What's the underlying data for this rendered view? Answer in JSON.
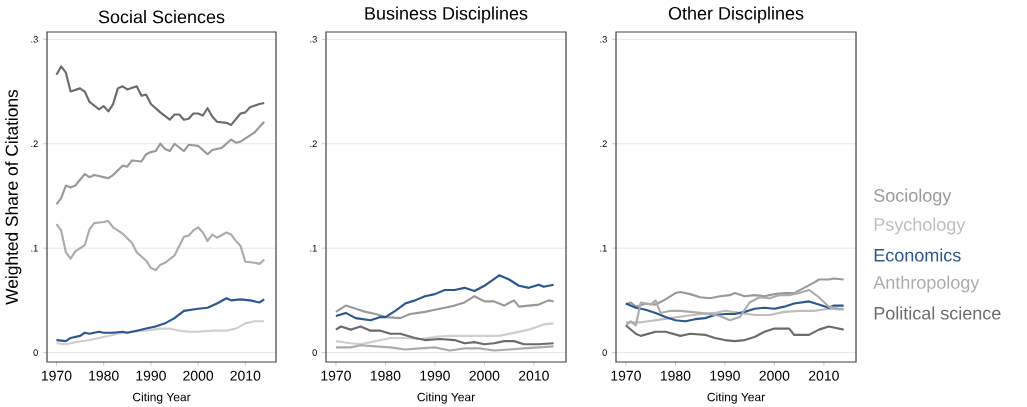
{
  "chart_data": [
    {
      "type": "line",
      "title": "Social Sciences",
      "xlabel": "Citing Year",
      "ylabel": "Weighted Share of Citations",
      "xlim": [
        1968,
        2016.5
      ],
      "ylim": [
        -0.009,
        0.307
      ],
      "xticks": [
        1970,
        1980,
        1990,
        2000,
        2010
      ],
      "yticks": [
        0,
        {
          "value": 0.1,
          "label": ".1"
        },
        {
          "value": 0.2,
          "label": ".2"
        },
        {
          "value": 0.3,
          "label": ".3"
        }
      ],
      "grid": "y",
      "series": [
        {
          "color": "#999999",
          "x": [
            1970,
            1971,
            1972,
            1973,
            1974,
            1976,
            1977,
            1978,
            1980,
            1981,
            1982,
            1984,
            1985,
            1986,
            1988,
            1989,
            1990,
            1991,
            1992,
            1993,
            1994,
            1995,
            1997,
            1998,
            2000,
            2002,
            2003,
            2005,
            2007,
            2008,
            2009,
            2011,
            2012,
            2014
          ],
          "values": [
            0.142,
            0.148,
            0.16,
            0.158,
            0.16,
            0.171,
            0.168,
            0.17,
            0.168,
            0.167,
            0.17,
            0.179,
            0.178,
            0.184,
            0.183,
            0.19,
            0.192,
            0.193,
            0.2,
            0.195,
            0.193,
            0.2,
            0.193,
            0.199,
            0.198,
            0.19,
            0.194,
            0.196,
            0.204,
            0.201,
            0.202,
            0.208,
            0.211,
            0.221
          ]
        },
        {
          "color": "#cfcfcf",
          "x": [
            1970,
            1972,
            1974,
            1977,
            1980,
            1983,
            1986,
            1989,
            1992,
            1994,
            1996,
            1998,
            2000,
            2003,
            2006,
            2008,
            2010,
            2012,
            2014
          ],
          "values": [
            0.009,
            0.008,
            0.01,
            0.012,
            0.015,
            0.018,
            0.02,
            0.021,
            0.023,
            0.023,
            0.021,
            0.02,
            0.02,
            0.021,
            0.021,
            0.023,
            0.028,
            0.03,
            0.03
          ]
        },
        {
          "color": "#2b5690",
          "x": [
            1970,
            1972,
            1973,
            1975,
            1976,
            1977,
            1979,
            1980,
            1982,
            1984,
            1985,
            1987,
            1989,
            1991,
            1993,
            1995,
            1997,
            2000,
            2002,
            2004,
            2006,
            2007,
            2009,
            2011,
            2013,
            2014
          ],
          "values": [
            0.012,
            0.011,
            0.014,
            0.016,
            0.019,
            0.018,
            0.02,
            0.019,
            0.019,
            0.02,
            0.019,
            0.021,
            0.023,
            0.025,
            0.028,
            0.033,
            0.04,
            0.042,
            0.043,
            0.047,
            0.052,
            0.05,
            0.051,
            0.05,
            0.048,
            0.051
          ]
        },
        {
          "color": "#ababab",
          "x": [
            1970,
            1971,
            1972,
            1973,
            1974,
            1976,
            1977,
            1978,
            1980,
            1981,
            1982,
            1984,
            1986,
            1987,
            1989,
            1990,
            1991,
            1992,
            1993,
            1995,
            1997,
            1998,
            1999,
            2000,
            2001,
            2002,
            2003,
            2004,
            2006,
            2007,
            2008,
            2009,
            2010,
            2012,
            2013,
            2014
          ],
          "values": [
            0.123,
            0.117,
            0.096,
            0.09,
            0.097,
            0.103,
            0.118,
            0.124,
            0.125,
            0.126,
            0.12,
            0.114,
            0.105,
            0.096,
            0.088,
            0.081,
            0.079,
            0.084,
            0.086,
            0.093,
            0.111,
            0.112,
            0.117,
            0.12,
            0.115,
            0.107,
            0.113,
            0.11,
            0.115,
            0.113,
            0.107,
            0.102,
            0.087,
            0.086,
            0.085,
            0.089
          ]
        },
        {
          "color": "#6b6b6b",
          "x": [
            1970,
            1971,
            1972,
            1973,
            1975,
            1976,
            1977,
            1979,
            1980,
            1981,
            1982,
            1983,
            1984,
            1985,
            1987,
            1988,
            1989,
            1990,
            1992,
            1994,
            1995,
            1996,
            1997,
            1998,
            1999,
            2000,
            2001,
            2002,
            2003,
            2004,
            2006,
            2007,
            2009,
            2010,
            2011,
            2013,
            2014
          ],
          "values": [
            0.266,
            0.274,
            0.268,
            0.25,
            0.253,
            0.25,
            0.24,
            0.233,
            0.236,
            0.231,
            0.238,
            0.253,
            0.255,
            0.252,
            0.255,
            0.246,
            0.247,
            0.238,
            0.23,
            0.223,
            0.228,
            0.228,
            0.223,
            0.224,
            0.229,
            0.229,
            0.227,
            0.234,
            0.226,
            0.221,
            0.22,
            0.218,
            0.229,
            0.23,
            0.235,
            0.238,
            0.239
          ]
        }
      ]
    },
    {
      "type": "line",
      "title": "Business Disciplines",
      "xlabel": "Citing Year",
      "xlim": [
        1968,
        2016.5
      ],
      "ylim": [
        -0.009,
        0.307
      ],
      "xticks": [
        1970,
        1980,
        1990,
        2000,
        2010
      ],
      "yticks": [
        0,
        {
          "value": 0.1,
          "label": ".1"
        },
        {
          "value": 0.2,
          "label": ".2"
        },
        {
          "value": 0.3,
          "label": ".3"
        }
      ],
      "grid": "y",
      "series": [
        {
          "color": "#999999",
          "x": [
            1970,
            1972,
            1974,
            1976,
            1978,
            1980,
            1983,
            1985,
            1988,
            1990,
            1992,
            1994,
            1996,
            1998,
            2000,
            2002,
            2004,
            2006,
            2007,
            2009,
            2011,
            2013,
            2014
          ],
          "values": [
            0.039,
            0.045,
            0.042,
            0.039,
            0.037,
            0.034,
            0.033,
            0.037,
            0.039,
            0.041,
            0.043,
            0.045,
            0.048,
            0.054,
            0.049,
            0.049,
            0.045,
            0.05,
            0.044,
            0.045,
            0.046,
            0.05,
            0.049
          ]
        },
        {
          "color": "#cfcfcf",
          "x": [
            1970,
            1973,
            1975,
            1978,
            1981,
            1984,
            1987,
            1990,
            1993,
            1996,
            2000,
            2003,
            2006,
            2009,
            2012,
            2014
          ],
          "values": [
            0.011,
            0.009,
            0.008,
            0.011,
            0.014,
            0.014,
            0.013,
            0.015,
            0.016,
            0.016,
            0.016,
            0.016,
            0.019,
            0.022,
            0.027,
            0.028
          ]
        },
        {
          "color": "#2b5690",
          "x": [
            1970,
            1972,
            1974,
            1977,
            1979,
            1980,
            1982,
            1984,
            1986,
            1988,
            1990,
            1992,
            1994,
            1996,
            1998,
            2000,
            2003,
            2005,
            2007,
            2009,
            2011,
            2012,
            2014
          ],
          "values": [
            0.035,
            0.038,
            0.033,
            0.031,
            0.034,
            0.034,
            0.04,
            0.047,
            0.05,
            0.054,
            0.056,
            0.06,
            0.06,
            0.062,
            0.059,
            0.064,
            0.074,
            0.07,
            0.064,
            0.062,
            0.065,
            0.063,
            0.065
          ]
        },
        {
          "color": "#ababab",
          "x": [
            1970,
            1973,
            1975,
            1978,
            1981,
            1984,
            1987,
            1990,
            1993,
            1996,
            1999,
            2002,
            2005,
            2008,
            2011,
            2014
          ],
          "values": [
            0.005,
            0.005,
            0.007,
            0.006,
            0.005,
            0.003,
            0.004,
            0.005,
            0.002,
            0.004,
            0.004,
            0.002,
            0.003,
            0.004,
            0.005,
            0.006
          ]
        },
        {
          "color": "#6b6b6b",
          "x": [
            1970,
            1971,
            1973,
            1975,
            1977,
            1979,
            1981,
            1983,
            1986,
            1988,
            1991,
            1994,
            1996,
            1998,
            2000,
            2002,
            2004,
            2006,
            2008,
            2011,
            2014
          ],
          "values": [
            0.022,
            0.025,
            0.022,
            0.025,
            0.021,
            0.021,
            0.018,
            0.018,
            0.014,
            0.012,
            0.013,
            0.012,
            0.009,
            0.01,
            0.008,
            0.009,
            0.011,
            0.011,
            0.008,
            0.008,
            0.009
          ]
        }
      ]
    },
    {
      "type": "line",
      "title": "Other Disciplines",
      "xlabel": "Citing Year",
      "xlim": [
        1968,
        2016.5
      ],
      "ylim": [
        -0.009,
        0.307
      ],
      "xticks": [
        1970,
        1980,
        1990,
        2000,
        2010
      ],
      "yticks": [
        0,
        {
          "value": 0.1,
          "label": ".1"
        },
        {
          "value": 0.2,
          "label": ".2"
        },
        {
          "value": 0.3,
          "label": ".3"
        }
      ],
      "grid": "y",
      "legend": "right",
      "series": [
        {
          "name": "Sociology",
          "color": "#999999",
          "x": [
            1970,
            1971,
            1972,
            1974,
            1976,
            1978,
            1980,
            1981,
            1983,
            1985,
            1987,
            1989,
            1991,
            1992,
            1994,
            1996,
            1998,
            2000,
            2002,
            2004,
            2006,
            2008,
            2009,
            2011,
            2012,
            2014
          ],
          "values": [
            0.046,
            0.048,
            0.044,
            0.047,
            0.046,
            0.051,
            0.057,
            0.058,
            0.056,
            0.053,
            0.052,
            0.054,
            0.055,
            0.057,
            0.054,
            0.055,
            0.054,
            0.056,
            0.057,
            0.057,
            0.062,
            0.067,
            0.07,
            0.07,
            0.071,
            0.07
          ]
        },
        {
          "name": "Psychology",
          "color": "#bdbdbd",
          "x": [
            1970,
            1973,
            1976,
            1979,
            1982,
            1985,
            1988,
            1990,
            1993,
            1996,
            1999,
            2002,
            2005,
            2008,
            2011,
            2014
          ],
          "values": [
            0.029,
            0.029,
            0.031,
            0.033,
            0.035,
            0.037,
            0.038,
            0.04,
            0.038,
            0.036,
            0.036,
            0.039,
            0.04,
            0.04,
            0.042,
            0.041
          ]
        },
        {
          "name": "Economics",
          "color": "#2b5690",
          "x": [
            1970,
            1972,
            1974,
            1976,
            1978,
            1980,
            1982,
            1984,
            1986,
            1988,
            1990,
            1992,
            1994,
            1996,
            1998,
            2000,
            2002,
            2004,
            2007,
            2009,
            2011,
            2012,
            2014
          ],
          "values": [
            0.047,
            0.043,
            0.041,
            0.038,
            0.034,
            0.031,
            0.03,
            0.032,
            0.033,
            0.036,
            0.037,
            0.037,
            0.039,
            0.042,
            0.043,
            0.042,
            0.044,
            0.047,
            0.049,
            0.046,
            0.043,
            0.045,
            0.045
          ]
        },
        {
          "name": "Anthropology",
          "color": "#ababab",
          "x": [
            1970,
            1971,
            1972,
            1973,
            1975,
            1976,
            1977,
            1979,
            1981,
            1983,
            1985,
            1987,
            1989,
            1991,
            1993,
            1995,
            1997,
            1999,
            2001,
            2003,
            2005,
            2007,
            2009,
            2011,
            2013,
            2014
          ],
          "values": [
            0.026,
            0.03,
            0.026,
            0.048,
            0.046,
            0.05,
            0.038,
            0.04,
            0.04,
            0.039,
            0.038,
            0.037,
            0.035,
            0.031,
            0.034,
            0.048,
            0.053,
            0.052,
            0.055,
            0.055,
            0.057,
            0.06,
            0.053,
            0.044,
            0.042,
            0.042
          ]
        },
        {
          "name": "Political science",
          "color": "#6b6b6b",
          "x": [
            1970,
            1972,
            1973,
            1976,
            1978,
            1981,
            1983,
            1986,
            1988,
            1990,
            1992,
            1994,
            1996,
            1998,
            2000,
            2003,
            2004,
            2007,
            2009,
            2011,
            2012,
            2014
          ],
          "values": [
            0.026,
            0.018,
            0.016,
            0.02,
            0.02,
            0.016,
            0.018,
            0.017,
            0.014,
            0.012,
            0.011,
            0.012,
            0.015,
            0.02,
            0.023,
            0.023,
            0.017,
            0.017,
            0.022,
            0.025,
            0.024,
            0.022
          ]
        }
      ]
    }
  ]
}
